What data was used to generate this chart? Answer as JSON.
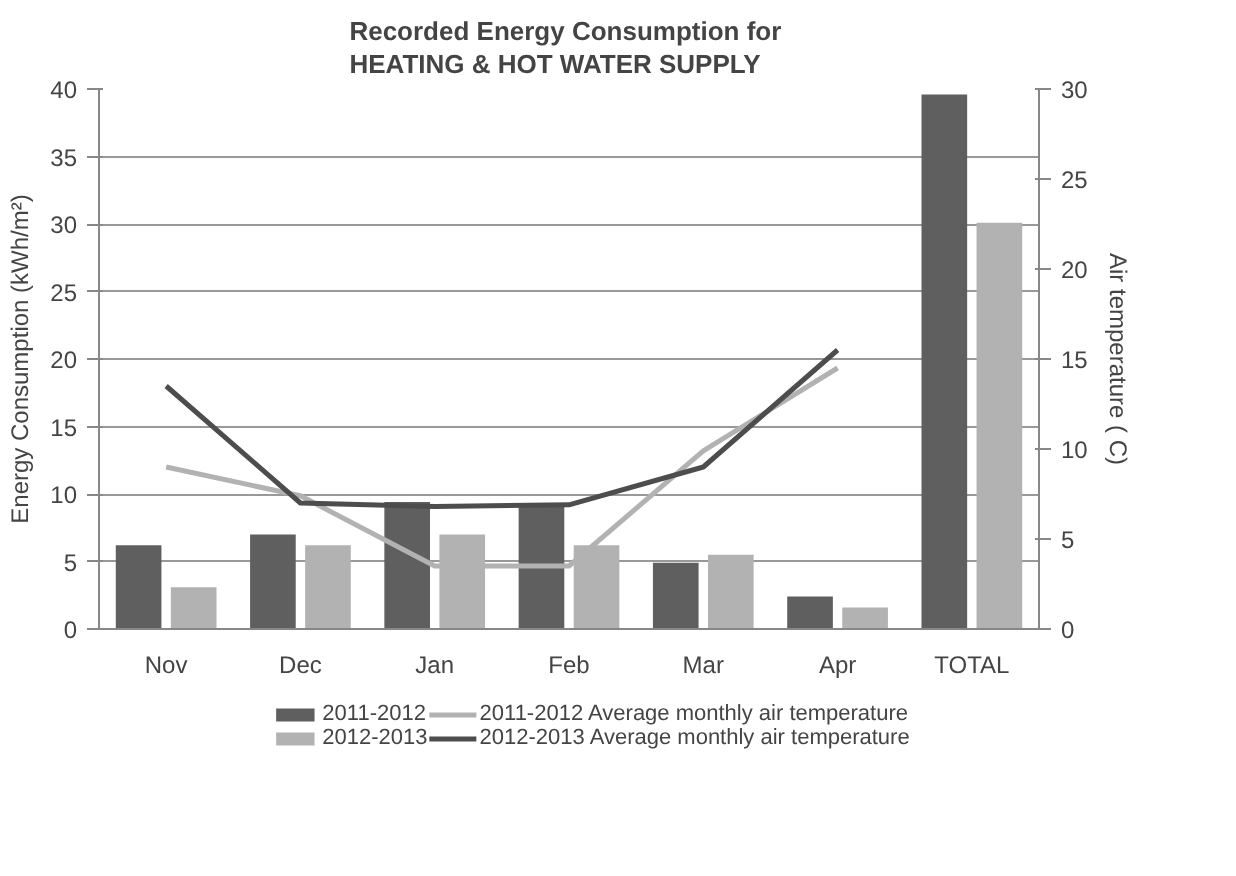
{
  "chart_data": {
    "type": "bar",
    "title": "Recorded Energy Consumption  for\nHEATING & HOT WATER SUPPLY",
    "ylabel": "Energy Consumption (kWh/m²)",
    "y2label": "Air temperature ( C)",
    "categories": [
      "Nov",
      "Dec",
      "Jan",
      "Feb",
      "Mar",
      "Apr",
      "TOTAL"
    ],
    "series": [
      {
        "name": "2011-2012",
        "color": "#5f5f5f",
        "values": [
          6.2,
          7.0,
          9.4,
          9.3,
          4.9,
          2.4,
          39.6
        ]
      },
      {
        "name": "2012-2013",
        "color": "#b2b2b2",
        "values": [
          3.1,
          6.2,
          7.0,
          6.2,
          5.5,
          1.6,
          30.1
        ]
      },
      {
        "name": "2011-2012 Average monthly air temperature",
        "type": "line",
        "axis": "y2",
        "color": "#b2b2b2",
        "values": [
          9.0,
          7.4,
          3.5,
          3.5,
          9.9,
          14.5,
          null
        ]
      },
      {
        "name": "2012-2013 Average monthly air temperature",
        "type": "line",
        "axis": "y2",
        "color": "#4d4d4d",
        "values": [
          13.5,
          7.0,
          6.8,
          6.9,
          9.0,
          15.5,
          null
        ]
      }
    ],
    "ylim": [
      0,
      40
    ],
    "yticks": [
      0,
      5,
      10,
      15,
      20,
      25,
      30,
      35,
      40
    ],
    "y2lim": [
      0,
      30
    ],
    "y2ticks": [
      0,
      5,
      10,
      15,
      20,
      25,
      30
    ],
    "grid": "y",
    "legend": "bottom"
  }
}
